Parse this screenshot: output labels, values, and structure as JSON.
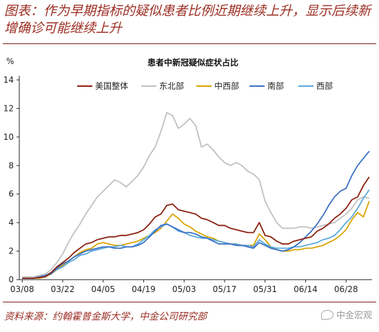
{
  "header": {
    "title": "图表：作为早期指标的疑似患者比例近期继续上升，显示后续新增确诊可能继续上升"
  },
  "source": "资料来源：约翰霍普金斯大学，中金公司研究部",
  "watermark": "中金宏观",
  "colors": {
    "美国整体": "#8b1f0e",
    "东北部": "#c0c0c0",
    "中西部": "#d9a400",
    "南部": "#3a6fc4",
    "西部": "#5aa9dd"
  },
  "chart_data": {
    "type": "line",
    "title": "患者中新冠疑似症状占比",
    "ylabel": "%",
    "xlabel": "",
    "ylim": [
      0,
      14
    ],
    "yticks": [
      0,
      2,
      4,
      6,
      8,
      10,
      12,
      14
    ],
    "x": [
      "03/08",
      "03/10",
      "03/12",
      "03/14",
      "03/16",
      "03/18",
      "03/20",
      "03/22",
      "03/24",
      "03/26",
      "03/28",
      "03/30",
      "04/01",
      "04/03",
      "04/05",
      "04/07",
      "04/09",
      "04/11",
      "04/13",
      "04/15",
      "04/17",
      "04/19",
      "04/21",
      "04/23",
      "04/25",
      "04/27",
      "04/29",
      "05/01",
      "05/03",
      "05/05",
      "05/07",
      "05/09",
      "05/11",
      "05/13",
      "05/15",
      "05/17",
      "05/19",
      "05/21",
      "05/23",
      "05/25",
      "05/27",
      "05/29",
      "05/31",
      "06/02",
      "06/04",
      "06/06",
      "06/08",
      "06/10",
      "06/12",
      "06/14",
      "06/16",
      "06/18",
      "06/20",
      "06/22",
      "06/24",
      "06/26",
      "06/28",
      "06/30",
      "07/02",
      "07/04",
      "07/06"
    ],
    "xticklabels": [
      "03/08",
      "03/22",
      "04/05",
      "04/19",
      "05/03",
      "05/17",
      "05/31",
      "06/14",
      "06/28"
    ],
    "legend_position": "top",
    "grid": false,
    "series": [
      {
        "name": "美国整体",
        "values": [
          0.1,
          0.1,
          0.1,
          0.15,
          0.2,
          0.5,
          0.9,
          1.2,
          1.5,
          1.9,
          2.2,
          2.5,
          2.6,
          2.8,
          2.9,
          3.0,
          3.0,
          3.1,
          3.1,
          3.2,
          3.3,
          3.5,
          3.9,
          4.4,
          4.6,
          5.2,
          5.3,
          4.9,
          4.8,
          4.7,
          4.6,
          4.3,
          4.2,
          4.0,
          3.8,
          3.8,
          3.6,
          3.5,
          3.4,
          3.3,
          3.3,
          4.0,
          3.1,
          3.0,
          2.7,
          2.5,
          2.5,
          2.7,
          2.8,
          2.9,
          3.0,
          3.4,
          3.6,
          3.9,
          4.3,
          4.6,
          5.0,
          5.6,
          5.8,
          6.6,
          7.2
        ]
      },
      {
        "name": "东北部",
        "values": [
          0.2,
          0.2,
          0.2,
          0.3,
          0.4,
          0.7,
          1.2,
          1.8,
          2.6,
          3.3,
          3.9,
          4.6,
          5.2,
          5.8,
          6.2,
          6.6,
          7.0,
          6.8,
          6.5,
          6.9,
          7.3,
          7.9,
          8.7,
          9.3,
          10.4,
          11.7,
          11.5,
          10.6,
          10.9,
          11.3,
          10.8,
          9.3,
          9.5,
          9.1,
          8.6,
          8.2,
          8.0,
          8.2,
          8.0,
          7.6,
          7.4,
          7.0,
          5.5,
          4.7,
          4.0,
          3.6,
          3.6,
          3.6,
          3.7,
          3.7,
          3.6,
          3.7,
          3.8,
          3.9,
          4.0,
          4.3,
          4.6,
          5.0,
          5.6,
          5.8,
          5.7
        ]
      },
      {
        "name": "中西部",
        "values": [
          0.1,
          0.1,
          0.1,
          0.1,
          0.2,
          0.4,
          0.7,
          1.0,
          1.3,
          1.6,
          1.9,
          2.1,
          2.2,
          2.5,
          2.6,
          2.5,
          2.4,
          2.4,
          2.5,
          2.6,
          2.7,
          2.9,
          3.1,
          3.3,
          3.6,
          4.1,
          4.6,
          4.3,
          3.9,
          3.7,
          3.4,
          3.2,
          3.0,
          2.9,
          2.7,
          2.6,
          2.5,
          2.5,
          2.4,
          2.4,
          2.4,
          3.2,
          2.8,
          2.3,
          2.1,
          2.0,
          2.0,
          2.1,
          2.1,
          2.2,
          2.2,
          2.3,
          2.4,
          2.6,
          2.8,
          3.1,
          3.5,
          4.2,
          4.7,
          4.4,
          5.5
        ]
      },
      {
        "name": "南部",
        "values": [
          0.1,
          0.1,
          0.1,
          0.2,
          0.3,
          0.4,
          0.8,
          1.1,
          1.3,
          1.6,
          1.8,
          2.0,
          2.1,
          2.2,
          2.3,
          2.3,
          2.2,
          2.2,
          2.3,
          2.3,
          2.4,
          2.6,
          3.0,
          3.4,
          3.8,
          3.9,
          3.7,
          3.5,
          3.3,
          3.3,
          3.2,
          3.0,
          2.9,
          2.7,
          2.5,
          2.5,
          2.5,
          2.4,
          2.4,
          2.3,
          2.2,
          2.6,
          2.4,
          2.2,
          2.1,
          2.0,
          2.1,
          2.3,
          2.6,
          3.0,
          3.4,
          3.9,
          4.5,
          5.2,
          5.8,
          6.2,
          6.4,
          7.3,
          8.0,
          8.5,
          9.0
        ]
      },
      {
        "name": "西部",
        "values": [
          0.1,
          0.1,
          0.1,
          0.2,
          0.3,
          0.5,
          0.7,
          0.9,
          1.2,
          1.4,
          1.7,
          1.8,
          2.0,
          2.1,
          2.2,
          2.3,
          2.3,
          2.4,
          2.3,
          2.3,
          2.5,
          2.8,
          3.1,
          3.5,
          3.7,
          3.9,
          3.7,
          3.4,
          3.3,
          3.1,
          3.0,
          2.9,
          2.9,
          2.8,
          2.7,
          2.6,
          2.5,
          2.5,
          2.4,
          2.4,
          2.3,
          2.8,
          2.5,
          2.3,
          2.2,
          2.2,
          2.2,
          2.3,
          2.3,
          2.4,
          2.5,
          2.6,
          2.8,
          2.9,
          3.1,
          3.5,
          4.0,
          4.4,
          5.0,
          5.7,
          6.3
        ]
      }
    ]
  }
}
